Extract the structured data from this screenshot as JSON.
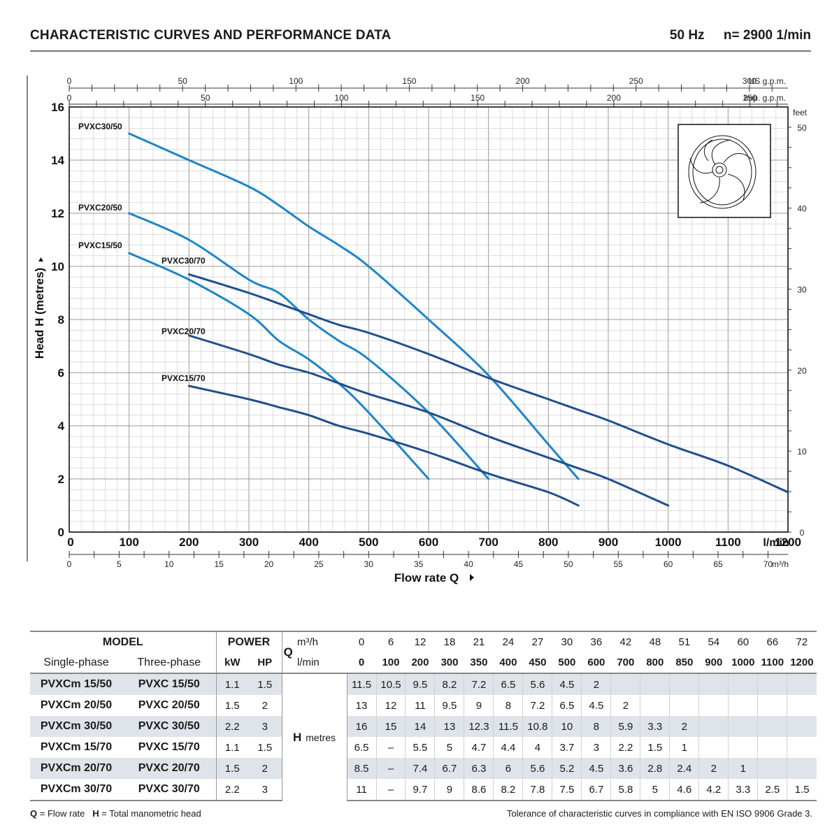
{
  "header": {
    "title": "CHARACTERISTIC CURVES AND PERFORMANCE DATA",
    "frequency": "50 Hz",
    "speed": "n= 2900  1/min"
  },
  "chart_data": {
    "type": "line",
    "xlabel": "Flow rate  Q",
    "ylabel": "Head H (metres)",
    "x_unit": "l/min",
    "xlim": [
      0,
      1200
    ],
    "ylim": [
      0,
      16
    ],
    "grid": true,
    "x_ticks": [
      "0",
      "100",
      "200",
      "300",
      "400",
      "500",
      "600",
      "700",
      "800",
      "900",
      "1000",
      "1100",
      "1200"
    ],
    "y_ticks": [
      "0",
      "2",
      "4",
      "6",
      "8",
      "10",
      "12",
      "14",
      "16"
    ],
    "secondary_axes": {
      "us_gpm": {
        "label": "US g.p.m.",
        "ticks": [
          "0",
          "50",
          "100",
          "150",
          "200",
          "250",
          "300"
        ],
        "values": [
          0,
          50,
          100,
          150,
          200,
          250,
          300
        ]
      },
      "imp_gpm": {
        "label": "Imp. g.p.m.",
        "ticks": [
          "0",
          "50",
          "100",
          "150",
          "200",
          "250"
        ],
        "values": [
          0,
          50,
          100,
          150,
          200,
          250
        ]
      },
      "m3h": {
        "label": "m³/h",
        "ticks": [
          "0",
          "5",
          "10",
          "15",
          "20",
          "25",
          "30",
          "35",
          "40",
          "45",
          "50",
          "55",
          "60",
          "65",
          "70"
        ],
        "values": [
          0,
          5,
          10,
          15,
          20,
          25,
          30,
          35,
          40,
          45,
          50,
          55,
          60,
          65,
          70
        ]
      },
      "feet": {
        "label": "feet",
        "ticks": [
          "0",
          "10",
          "20",
          "30",
          "40",
          "50"
        ],
        "values": [
          0,
          10,
          20,
          30,
          40,
          50
        ]
      }
    },
    "series": [
      {
        "name": "PVXC30/50",
        "color": "#1d85c8",
        "x": [
          100,
          200,
          300,
          350,
          400,
          450,
          500,
          600,
          700,
          800,
          850
        ],
        "y": [
          15,
          14,
          13,
          12.3,
          11.5,
          10.8,
          10,
          8,
          5.9,
          3.3,
          2
        ]
      },
      {
        "name": "PVXC20/50",
        "color": "#1d85c8",
        "x": [
          100,
          200,
          300,
          350,
          400,
          450,
          500,
          600,
          700
        ],
        "y": [
          12,
          11,
          9.5,
          9,
          8,
          7.2,
          6.5,
          4.5,
          2
        ]
      },
      {
        "name": "PVXC15/50",
        "color": "#1d85c8",
        "x": [
          100,
          200,
          300,
          350,
          400,
          450,
          500,
          600
        ],
        "y": [
          10.5,
          9.5,
          8.2,
          7.2,
          6.5,
          5.6,
          4.5,
          2
        ]
      },
      {
        "name": "PVXC30/70",
        "color": "#1f4f8c",
        "x": [
          200,
          300,
          350,
          400,
          450,
          500,
          600,
          700,
          800,
          850,
          900,
          1000,
          1100,
          1200
        ],
        "y": [
          9.7,
          9,
          8.6,
          8.2,
          7.8,
          7.5,
          6.7,
          5.8,
          5,
          4.6,
          4.2,
          3.3,
          2.5,
          1.5
        ]
      },
      {
        "name": "PVXC20/70",
        "color": "#1f4f8c",
        "x": [
          200,
          300,
          350,
          400,
          450,
          500,
          600,
          700,
          800,
          850,
          900,
          1000
        ],
        "y": [
          7.4,
          6.7,
          6.3,
          6,
          5.6,
          5.2,
          4.5,
          3.6,
          2.8,
          2.4,
          2,
          1
        ]
      },
      {
        "name": "PVXC15/70",
        "color": "#1f4f8c",
        "x": [
          200,
          300,
          350,
          400,
          450,
          500,
          600,
          700,
          800,
          850
        ],
        "y": [
          5.5,
          5,
          4.7,
          4.4,
          4,
          3.7,
          3,
          2.2,
          1.5,
          1
        ]
      }
    ]
  },
  "table": {
    "headers": {
      "model": "MODEL",
      "single_phase": "Single-phase",
      "three_phase": "Three-phase",
      "power": "POWER",
      "kw": "kW",
      "hp": "HP",
      "q": "Q",
      "m3h": "m³/h",
      "lmin": "l/min",
      "h": "H",
      "metres": "metres"
    },
    "q_m3h": [
      "0",
      "6",
      "12",
      "18",
      "21",
      "24",
      "27",
      "30",
      "36",
      "42",
      "48",
      "51",
      "54",
      "60",
      "66",
      "72"
    ],
    "q_lmin": [
      "0",
      "100",
      "200",
      "300",
      "350",
      "400",
      "450",
      "500",
      "600",
      "700",
      "800",
      "850",
      "900",
      "1000",
      "1100",
      "1200"
    ],
    "rows": [
      {
        "single": "PVXCm 15/50",
        "three": "PVXC 15/50",
        "kw": "1.1",
        "hp": "1.5",
        "h": [
          "11.5",
          "10.5",
          "9.5",
          "8.2",
          "7.2",
          "6.5",
          "5.6",
          "4.5",
          "2",
          "",
          "",
          "",
          "",
          "",
          "",
          ""
        ]
      },
      {
        "single": "PVXCm 20/50",
        "three": "PVXC 20/50",
        "kw": "1.5",
        "hp": "2",
        "h": [
          "13",
          "12",
          "11",
          "9.5",
          "9",
          "8",
          "7.2",
          "6.5",
          "4.5",
          "2",
          "",
          "",
          "",
          "",
          "",
          ""
        ]
      },
      {
        "single": "PVXCm 30/50",
        "three": "PVXC 30/50",
        "kw": "2.2",
        "hp": "3",
        "h": [
          "16",
          "15",
          "14",
          "13",
          "12.3",
          "11.5",
          "10.8",
          "10",
          "8",
          "5.9",
          "3.3",
          "2",
          "",
          "",
          "",
          ""
        ]
      },
      {
        "single": "PVXCm 15/70",
        "three": "PVXC 15/70",
        "kw": "1.1",
        "hp": "1.5",
        "h": [
          "6.5",
          "–",
          "5.5",
          "5",
          "4.7",
          "4.4",
          "4",
          "3.7",
          "3",
          "2.2",
          "1.5",
          "1",
          "",
          "",
          "",
          ""
        ]
      },
      {
        "single": "PVXCm 20/70",
        "three": "PVXC 20/70",
        "kw": "1.5",
        "hp": "2",
        "h": [
          "8.5",
          "–",
          "7.4",
          "6.7",
          "6.3",
          "6",
          "5.6",
          "5.2",
          "4.5",
          "3.6",
          "2.8",
          "2.4",
          "2",
          "1",
          "",
          ""
        ]
      },
      {
        "single": "PVXCm 30/70",
        "three": "PVXC 30/70",
        "kw": "2.2",
        "hp": "3",
        "h": [
          "11",
          "–",
          "9.7",
          "9",
          "8.6",
          "8.2",
          "7.8",
          "7.5",
          "6.7",
          "5.8",
          "5",
          "4.6",
          "4.2",
          "3.3",
          "2.5",
          "1.5"
        ]
      }
    ]
  },
  "footer": {
    "q_key": "Q",
    "q_text": " = Flow rate",
    "h_key": "H",
    "h_text": " = Total manometric head",
    "tolerance": "Tolerance of characteristic curves in compliance with  EN ISO 9906 Grade 3."
  }
}
